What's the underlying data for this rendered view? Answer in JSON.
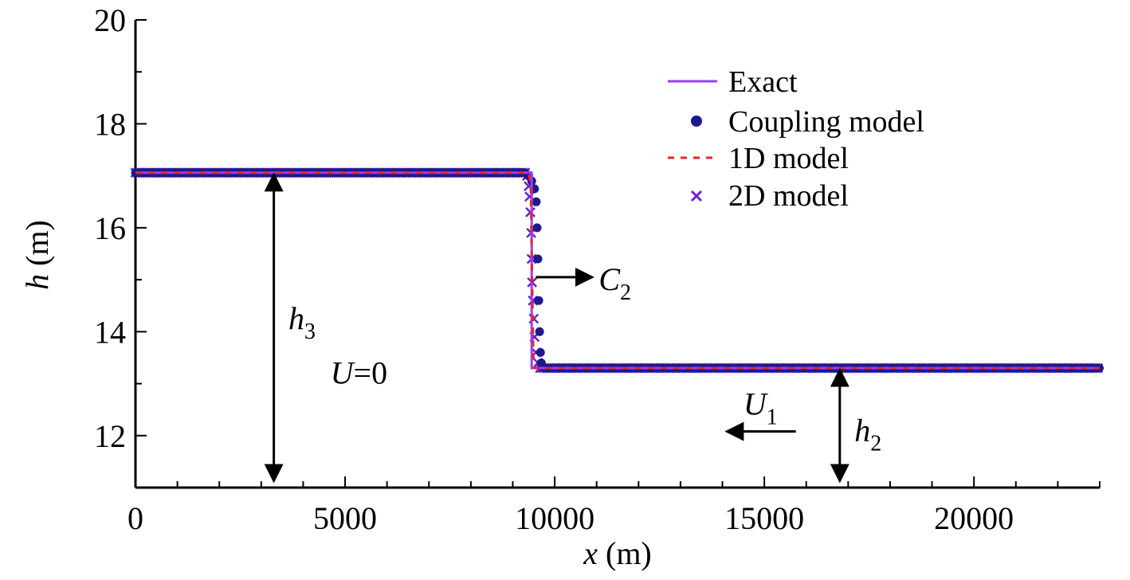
{
  "chart_data": {
    "type": "line",
    "title": "",
    "xlabel": {
      "var": "x",
      "unit": " (m)"
    },
    "ylabel": {
      "var": "h",
      "unit": " (m)"
    },
    "xlim": [
      0,
      23000
    ],
    "ylim": [
      11,
      20
    ],
    "xticks": [
      0,
      5000,
      10000,
      15000,
      20000
    ],
    "yticks": [
      12,
      14,
      16,
      18,
      20
    ],
    "x_minor_step": 1000,
    "y_minor_step": 1,
    "grid": false,
    "legend_position": "top-right",
    "series": [
      {
        "name": "Exact",
        "style": "solid-line",
        "color": "#9b3ff0",
        "points": [
          [
            0,
            17.06
          ],
          [
            9450,
            17.06
          ],
          [
            9450,
            13.3
          ],
          [
            23000,
            13.3
          ]
        ]
      },
      {
        "name": "Coupling model",
        "style": "dot",
        "color": "#1c1a8c",
        "left_level": 17.06,
        "right_level": 13.3,
        "left_range": [
          0,
          9280
        ],
        "right_range": [
          9750,
          23000
        ],
        "step": 40,
        "transition": [
          [
            9300,
            17.05
          ],
          [
            9380,
            17.0
          ],
          [
            9450,
            16.9
          ],
          [
            9520,
            16.75
          ],
          [
            9560,
            16.5
          ],
          [
            9580,
            16.0
          ],
          [
            9600,
            15.4
          ],
          [
            9620,
            14.6
          ],
          [
            9640,
            14.0
          ],
          [
            9660,
            13.6
          ],
          [
            9680,
            13.4
          ],
          [
            9710,
            13.32
          ]
        ]
      },
      {
        "name": "1D model",
        "style": "dashed-line",
        "color": "#e8242a",
        "points": [
          [
            0,
            17.06
          ],
          [
            9380,
            17.06
          ],
          [
            9430,
            16.8
          ],
          [
            9460,
            15.0
          ],
          [
            9490,
            13.5
          ],
          [
            9540,
            13.3
          ],
          [
            23000,
            13.3
          ]
        ]
      },
      {
        "name": "2D model",
        "style": "cross",
        "color": "#6a1fd1",
        "left_level": 17.06,
        "right_level": 13.3,
        "left_range": [
          0,
          9300
        ],
        "right_range": [
          9650,
          23000
        ],
        "step": 55,
        "transition": [
          [
            9340,
            17.0
          ],
          [
            9380,
            16.8
          ],
          [
            9400,
            16.6
          ],
          [
            9420,
            16.3
          ],
          [
            9440,
            15.9
          ],
          [
            9450,
            15.4
          ],
          [
            9460,
            14.95
          ],
          [
            9480,
            14.6
          ],
          [
            9500,
            14.25
          ],
          [
            9520,
            13.9
          ],
          [
            9550,
            13.6
          ],
          [
            9600,
            13.4
          ]
        ]
      }
    ],
    "annotations": [
      {
        "type": "double-arrow",
        "x": 3300,
        "y1": 17.06,
        "y2": 11.0,
        "label": "h",
        "sub": "3",
        "label_x": 3650,
        "label_y": 14.05
      },
      {
        "type": "text",
        "text": "U=0",
        "x": 4650,
        "y": 13.0
      },
      {
        "type": "arrow",
        "from": [
          9550,
          15.05
        ],
        "to": [
          10900,
          15.05
        ],
        "label": "C",
        "sub": "2",
        "label_x": 11050,
        "label_y": 14.8
      },
      {
        "type": "double-arrow",
        "x": 16800,
        "y1": 13.3,
        "y2": 11.0,
        "label": "h",
        "sub": "2",
        "label_x": 17150,
        "label_y": 11.9
      },
      {
        "type": "arrow",
        "from": [
          15750,
          12.08
        ],
        "to": [
          14100,
          12.08
        ],
        "label": "U",
        "sub": "1",
        "label_x": 14500,
        "label_y": 12.4
      }
    ]
  }
}
